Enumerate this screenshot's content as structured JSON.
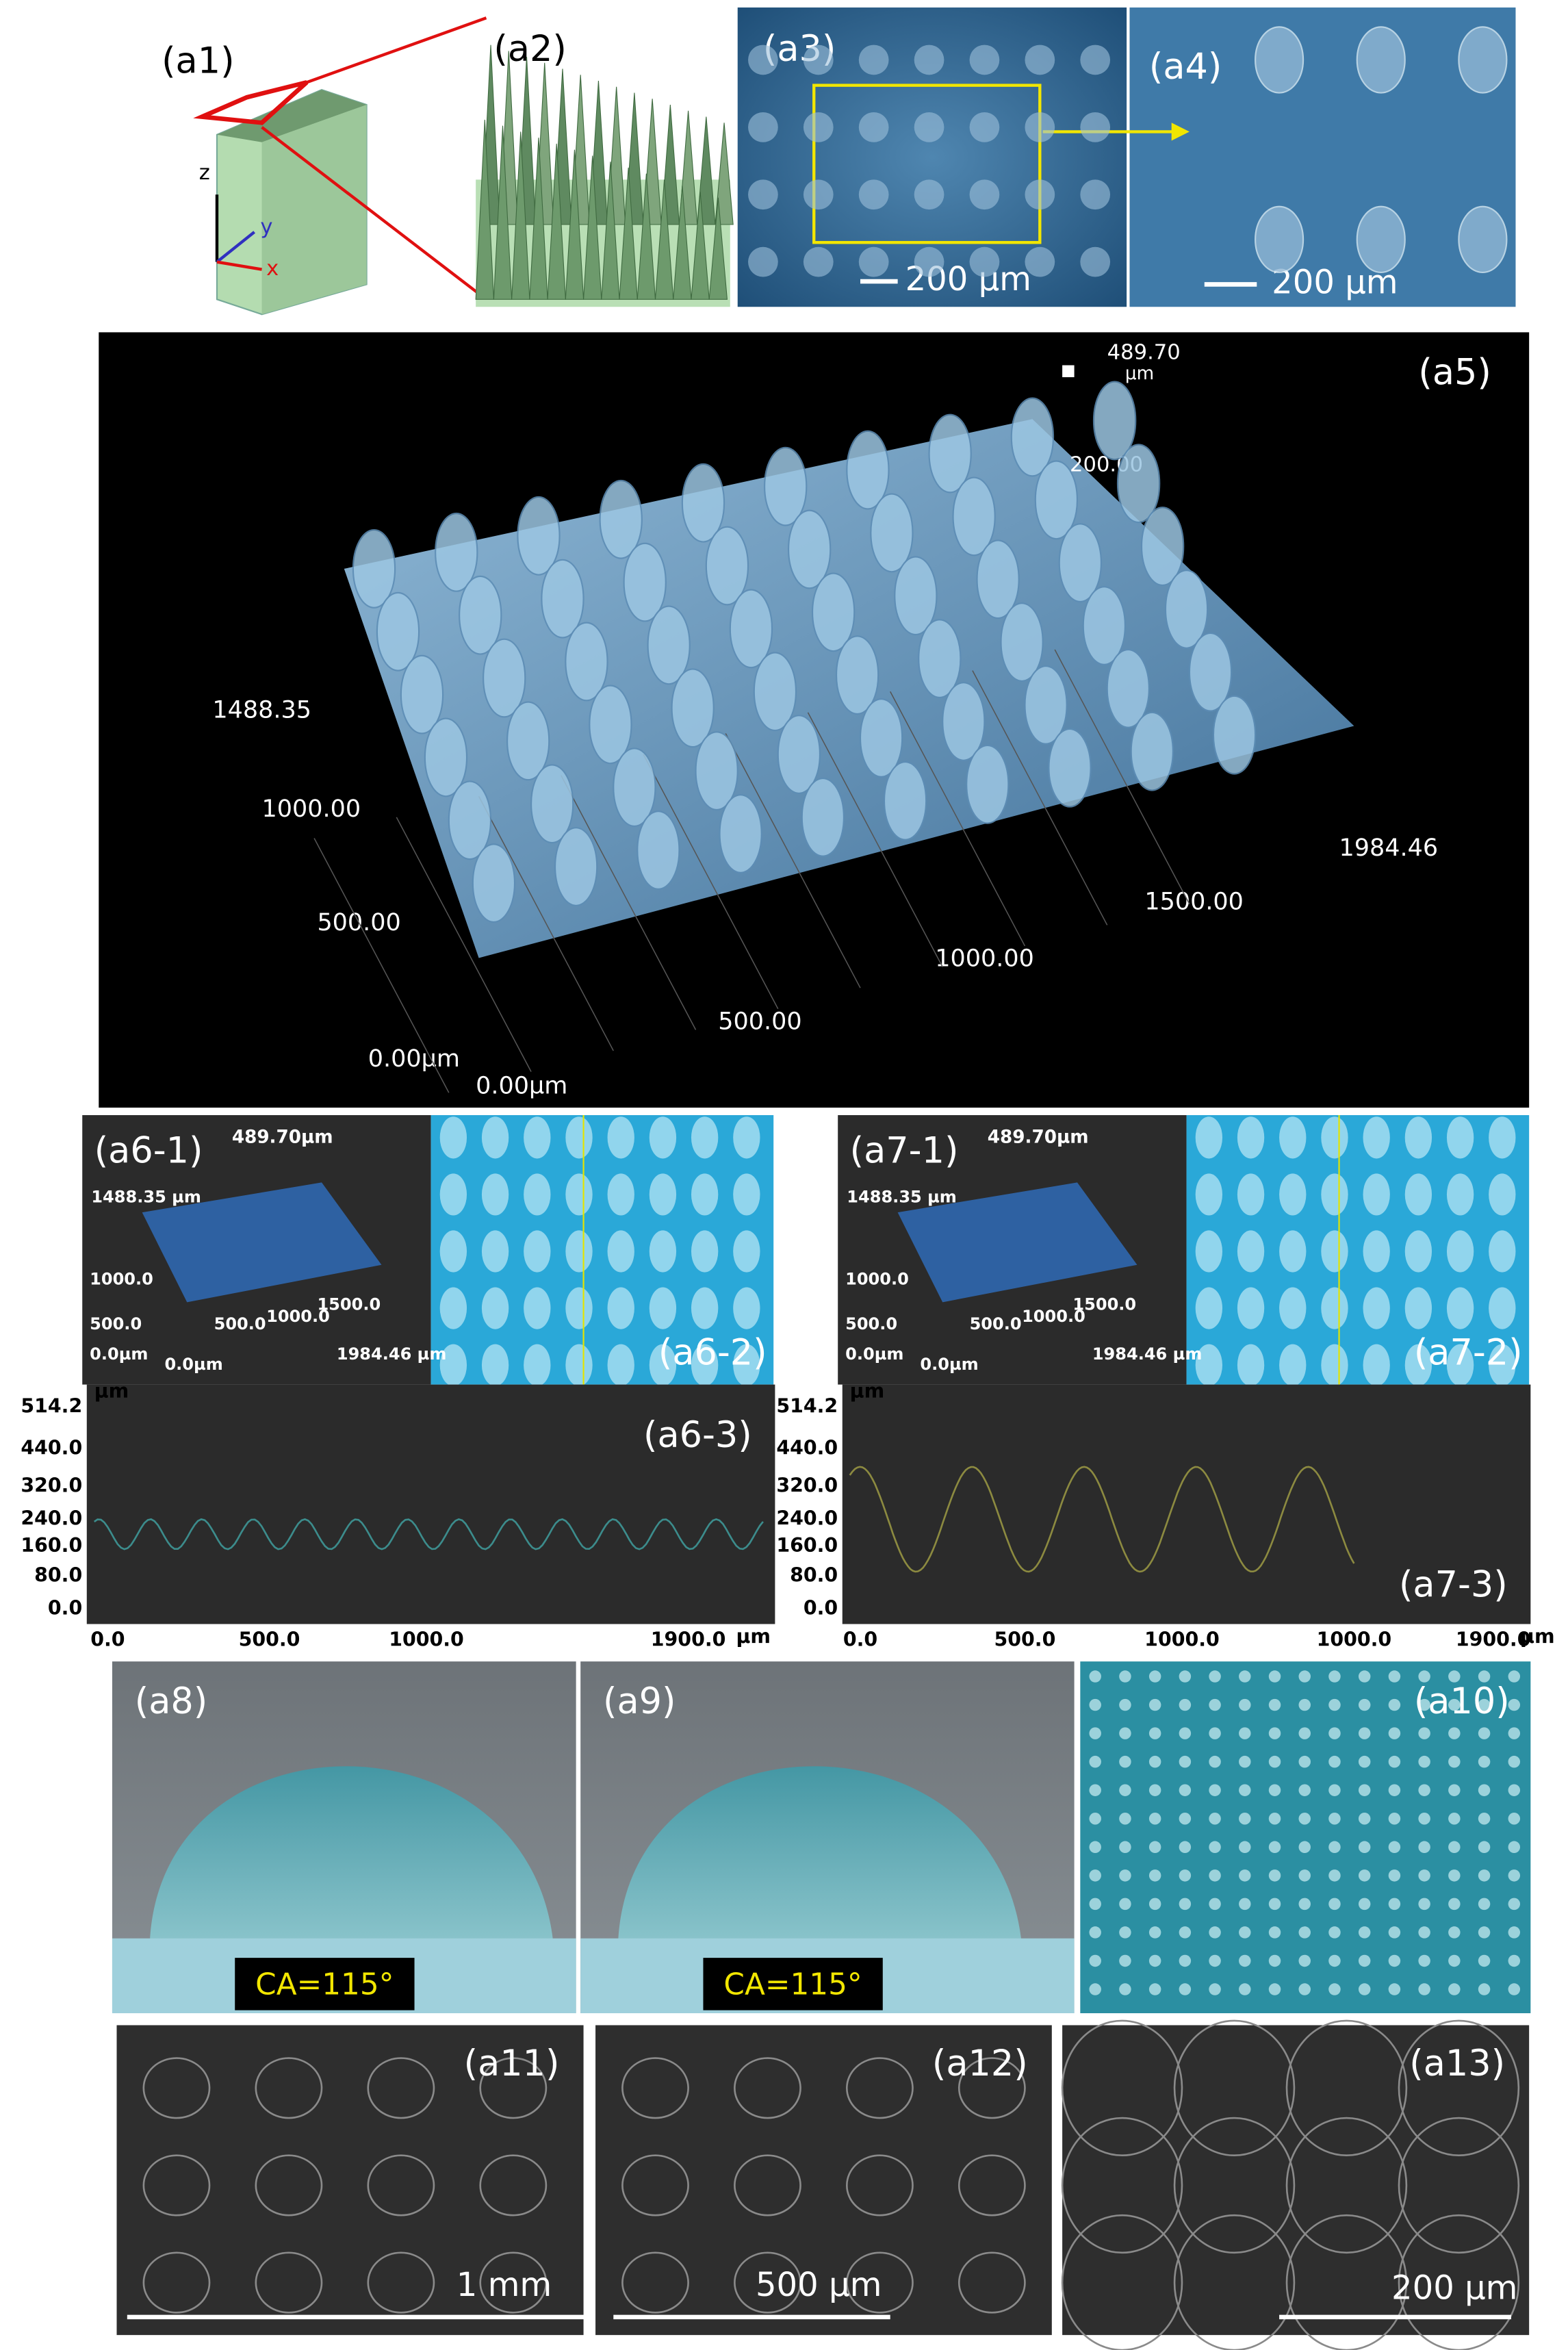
{
  "panels": {
    "a1": {
      "label": "(a1)",
      "axes": [
        "z",
        "y",
        "x"
      ]
    },
    "a2": {
      "label": "(a2)"
    },
    "a3": {
      "label": "(a3)",
      "scale_bar": "200 µm"
    },
    "a4": {
      "label": "(a4)",
      "scale_bar": "200 µm"
    },
    "a5": {
      "label": "(a5)",
      "z_max": "489.70",
      "z_unit": "µm",
      "z_tick": "200.00",
      "y_labels": [
        "1488.35",
        "1000.00",
        "500.00",
        "0.00µm"
      ],
      "x_labels": [
        "0.00µm",
        "500.00",
        "1000.00",
        "1500.00",
        "1984.46"
      ]
    },
    "a6": {
      "label_3d": "(a6-1)",
      "label_image": "(a6-2)",
      "label_profile": "(a6-3)",
      "inset": {
        "z_max": "489.70µm",
        "y_max": "1488.35 µm",
        "y_labels": [
          "1000.0",
          "500.0",
          "0.0µm"
        ],
        "x_labels": [
          "0.0µm",
          "500.0",
          "1000.0",
          "1500.0",
          "1984.46 µm"
        ]
      },
      "profile": {
        "unit": "µm",
        "y_ticks": [
          "514.2",
          "440.0",
          "320.0",
          "240.0",
          "160.0",
          "80.0",
          "0.0"
        ],
        "x_ticks": [
          "0.0",
          "500.0",
          "1000.0",
          "1900.0"
        ],
        "x_unit": "µm"
      }
    },
    "a7": {
      "label_3d": "(a7-1)",
      "label_image": "(a7-2)",
      "label_profile": "(a7-3)",
      "inset": {
        "z_max": "489.70µm",
        "y_max": "1488.35 µm",
        "y_labels": [
          "1000.0",
          "500.0",
          "0.0µm"
        ],
        "x_labels": [
          "0.0µm",
          "500.0",
          "1000.0",
          "1500.0",
          "1984.46 µm"
        ]
      },
      "profile": {
        "unit": "µm",
        "y_ticks": [
          "514.2",
          "440.0",
          "320.0",
          "240.0",
          "160.0",
          "80.0",
          "0.0"
        ],
        "x_ticks": [
          "0.0",
          "500.0",
          "1000.0",
          "1000.0",
          "1900.0"
        ],
        "x_unit": "µm"
      }
    },
    "a8": {
      "label": "(a8)",
      "contact_angle": "CA=115°"
    },
    "a9": {
      "label": "(a9)",
      "contact_angle": "CA=115°"
    },
    "a10": {
      "label": "(a10)"
    },
    "a11": {
      "label": "(a11)",
      "scale_bar": "1 mm"
    },
    "a12": {
      "label": "(a12)",
      "scale_bar": "500 µm"
    },
    "a13": {
      "label": "(a13)",
      "scale_bar": "200 µm"
    }
  }
}
